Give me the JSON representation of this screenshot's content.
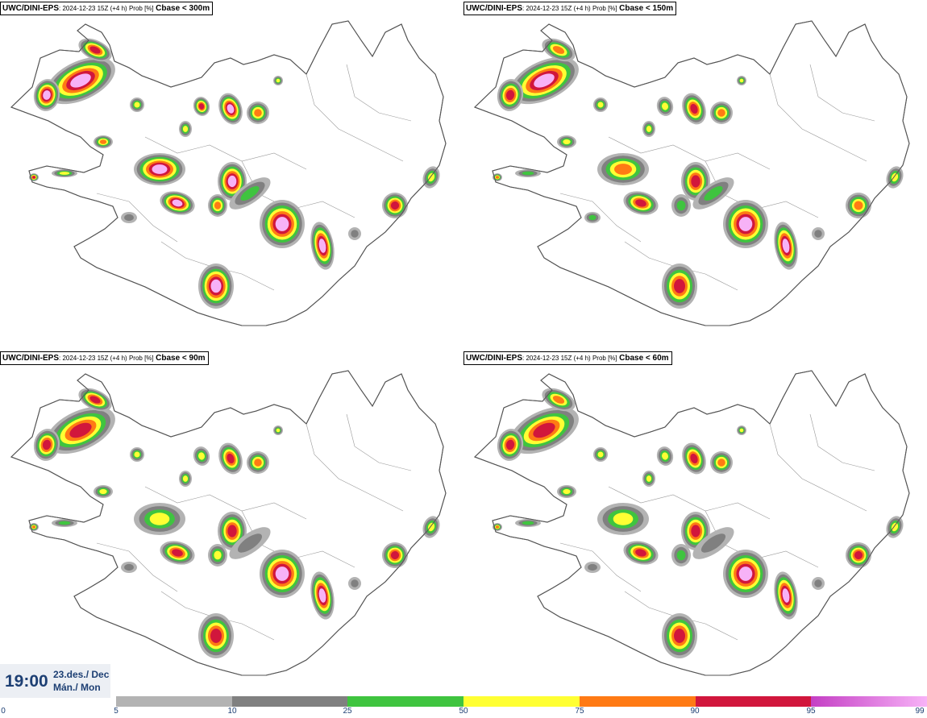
{
  "panels": [
    {
      "model": "UWC/DINI-EPS",
      "meta": ": 2024-12-23 15Z (+4 h) Prob [%]",
      "cbase": "Cbase < 300m"
    },
    {
      "model": "UWC/DINI-EPS",
      "meta": ": 2024-12-23 15Z (+4 h) Prob [%]",
      "cbase": "Cbase < 150m"
    },
    {
      "model": "UWC/DINI-EPS",
      "meta": ": 2024-12-23 15Z (+4 h) Prob [%]",
      "cbase": "Cbase < 90m"
    },
    {
      "model": "UWC/DINI-EPS",
      "meta": ": 2024-12-23 15Z (+4 h) Prob [%]",
      "cbase": "Cbase < 60m"
    }
  ],
  "valid_time": {
    "time": "19:00",
    "date": "23.des./ Dec",
    "day": "Mán./ Mon"
  },
  "legend": {
    "ticks": [
      "0",
      "5",
      "10",
      "25",
      "50",
      "75",
      "90",
      "95",
      "99"
    ],
    "colors": [
      "#b3b3b3",
      "#808080",
      "#3fc43f",
      "#ffff33",
      "#ff7a14",
      "#d1163c",
      "#c43fc4"
    ],
    "gradient_end": "#f7b2f7"
  },
  "colors": {
    "gray_light": "#b3b3b3",
    "gray_dark": "#808080",
    "green": "#3fc43f",
    "yellow": "#ffff33",
    "orange": "#ff7a14",
    "red": "#d1163c",
    "magenta": "#c43fc4",
    "pink": "#f7b2f7",
    "time_text": "#1d3f73"
  }
}
